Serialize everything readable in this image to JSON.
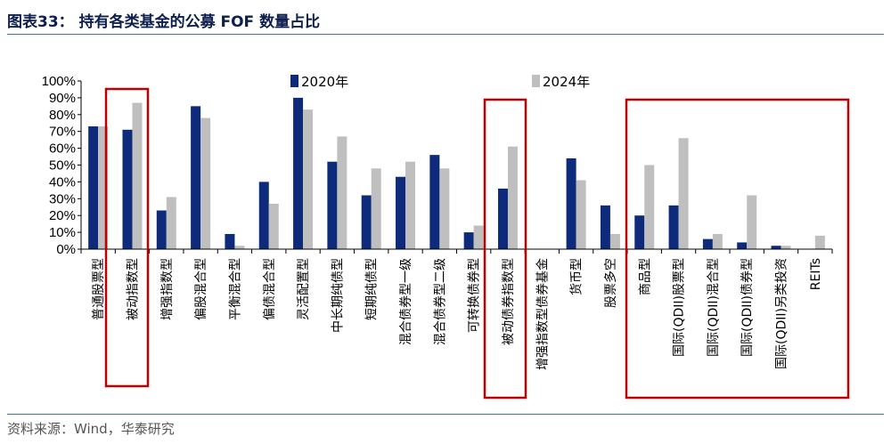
{
  "header": {
    "title": "图表33：  持有各类基金的公募 FOF 数量占比"
  },
  "footer": {
    "source": "资料来源：Wind，华泰研究"
  },
  "chart_data": {
    "type": "bar",
    "title": "",
    "xlabel": "",
    "ylabel": "",
    "ylim": [
      0,
      100
    ],
    "y_ticks": [
      "0%",
      "10%",
      "20%",
      "30%",
      "40%",
      "50%",
      "60%",
      "70%",
      "80%",
      "90%",
      "100%"
    ],
    "legend_position": "top-center",
    "grid": false,
    "categories": [
      "普通股票型",
      "被动指数型",
      "增强指数型",
      "偏股混合型",
      "平衡混合型",
      "偏债混合型",
      "灵活配置型",
      "中长期纯债型",
      "短期纯债型",
      "混合债券型一级",
      "混合债券型二级",
      "可转换债券型",
      "被动债券指数型",
      "增强指数型债券基金",
      "货币型",
      "股票多空",
      "商品型",
      "国际(QDII)股票型",
      "国际(QDII)混合型",
      "国际(QDII)债券型",
      "国际(QDII)另类投资",
      "REITs"
    ],
    "series": [
      {
        "name": "2020年",
        "color": "#0d2b7a",
        "values": [
          73,
          71,
          23,
          85,
          9,
          40,
          90,
          52,
          32,
          43,
          56,
          10,
          36,
          0,
          54,
          26,
          20,
          26,
          6,
          4,
          2,
          0
        ]
      },
      {
        "name": "2024年",
        "color": "#bfbfbf",
        "values": [
          73,
          87,
          31,
          78,
          2,
          27,
          83,
          67,
          48,
          52,
          48,
          14,
          61,
          0,
          41,
          9,
          50,
          66,
          9,
          32,
          2,
          8
        ]
      }
    ],
    "highlight_boxes": [
      {
        "categories": [
          "被动指数型"
        ],
        "color": "#c00000"
      },
      {
        "categories": [
          "被动债券指数型"
        ],
        "color": "#c00000"
      },
      {
        "categories": [
          "商品型",
          "国际(QDII)股票型",
          "国际(QDII)混合型",
          "国际(QDII)债券型",
          "国际(QDII)另类投资",
          "REITs"
        ],
        "color": "#c00000"
      }
    ]
  }
}
